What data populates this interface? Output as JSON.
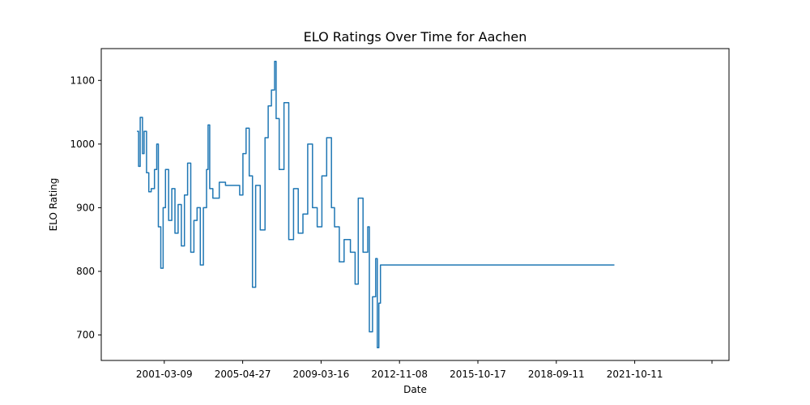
{
  "chart_data": {
    "type": "line",
    "title": "ELO Ratings Over Time for Aachen",
    "xlabel": "Date",
    "ylabel": "ELO Rating",
    "x_ticks": [
      "2001-03-09",
      "2005-04-27",
      "2009-03-16",
      "2012-11-08",
      "2015-10-17",
      "2018-09-11",
      "2021-10-11",
      ""
    ],
    "y_ticks": [
      700,
      800,
      900,
      1000,
      1100
    ],
    "ylim": [
      660,
      1150
    ],
    "grid": false,
    "series_color": "#1f77b4",
    "series": [
      {
        "points": [
          [
            "1999-10-01",
            1020
          ],
          [
            "1999-11-01",
            965
          ],
          [
            "1999-12-01",
            1042
          ],
          [
            "2000-01-15",
            985
          ],
          [
            "2000-02-15",
            1020
          ],
          [
            "2000-04-01",
            955
          ],
          [
            "2000-05-15",
            925
          ],
          [
            "2000-07-01",
            930
          ],
          [
            "2000-09-01",
            960
          ],
          [
            "2000-10-15",
            1000
          ],
          [
            "2000-11-15",
            870
          ],
          [
            "2001-01-01",
            805
          ],
          [
            "2001-02-15",
            900
          ],
          [
            "2001-04-01",
            960
          ],
          [
            "2001-06-01",
            880
          ],
          [
            "2001-08-01",
            930
          ],
          [
            "2001-10-01",
            860
          ],
          [
            "2001-12-01",
            905
          ],
          [
            "2002-02-01",
            840
          ],
          [
            "2002-04-01",
            920
          ],
          [
            "2002-06-01",
            970
          ],
          [
            "2002-08-01",
            830
          ],
          [
            "2002-10-01",
            880
          ],
          [
            "2002-12-01",
            900
          ],
          [
            "2003-02-01",
            810
          ],
          [
            "2003-04-01",
            900
          ],
          [
            "2003-06-01",
            960
          ],
          [
            "2003-07-01",
            1030
          ],
          [
            "2003-08-01",
            930
          ],
          [
            "2003-10-01",
            915
          ],
          [
            "2004-01-01",
            915
          ],
          [
            "2004-02-01",
            940
          ],
          [
            "2004-06-01",
            935
          ],
          [
            "2005-02-01",
            935
          ],
          [
            "2005-03-01",
            920
          ],
          [
            "2005-05-01",
            985
          ],
          [
            "2005-07-01",
            1025
          ],
          [
            "2005-09-01",
            950
          ],
          [
            "2005-11-01",
            775
          ],
          [
            "2006-01-01",
            935
          ],
          [
            "2006-04-01",
            865
          ],
          [
            "2006-07-01",
            1010
          ],
          [
            "2006-09-01",
            1060
          ],
          [
            "2006-11-01",
            1085
          ],
          [
            "2007-01-01",
            1130
          ],
          [
            "2007-02-01",
            1040
          ],
          [
            "2007-04-01",
            960
          ],
          [
            "2007-07-01",
            1065
          ],
          [
            "2007-10-01",
            850
          ],
          [
            "2008-01-01",
            930
          ],
          [
            "2008-04-01",
            860
          ],
          [
            "2008-07-01",
            890
          ],
          [
            "2008-10-01",
            1000
          ],
          [
            "2009-01-01",
            900
          ],
          [
            "2009-04-01",
            870
          ],
          [
            "2009-07-01",
            950
          ],
          [
            "2009-10-01",
            1010
          ],
          [
            "2010-01-01",
            900
          ],
          [
            "2010-03-01",
            870
          ],
          [
            "2010-06-01",
            815
          ],
          [
            "2010-09-01",
            850
          ],
          [
            "2011-01-01",
            830
          ],
          [
            "2011-04-01",
            780
          ],
          [
            "2011-06-01",
            915
          ],
          [
            "2011-09-01",
            830
          ],
          [
            "2011-12-01",
            870
          ],
          [
            "2012-01-01",
            705
          ],
          [
            "2012-03-01",
            760
          ],
          [
            "2012-05-01",
            820
          ],
          [
            "2012-06-01",
            680
          ],
          [
            "2012-07-01",
            750
          ],
          [
            "2012-08-01",
            810
          ],
          [
            "2024-12-01",
            810
          ]
        ]
      }
    ]
  }
}
